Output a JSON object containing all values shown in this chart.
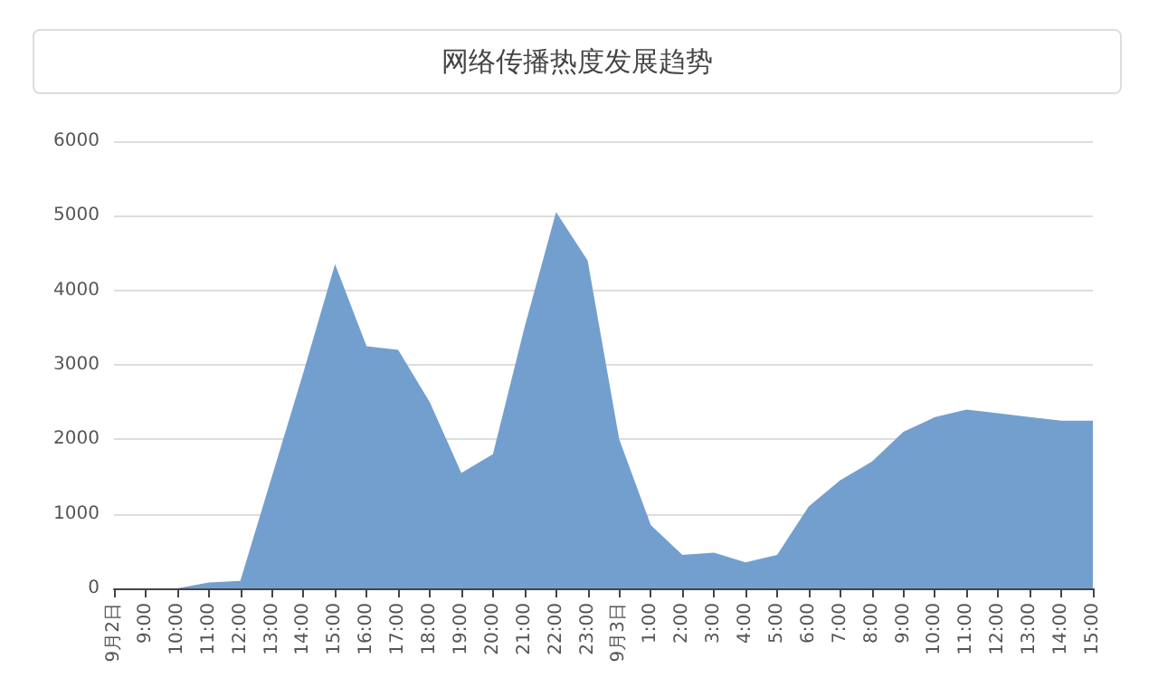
{
  "chart_data": {
    "type": "area",
    "title": "网络传播热度发展趋势",
    "categories": [
      "9月2日",
      "9:00",
      "10:00",
      "11:00",
      "12:00",
      "13:00",
      "14:00",
      "15:00",
      "16:00",
      "17:00",
      "18:00",
      "19:00",
      "20:00",
      "21:00",
      "22:00",
      "23:00",
      "9月3日",
      "1:00",
      "2:00",
      "3:00",
      "4:00",
      "5:00",
      "6:00",
      "7:00",
      "8:00",
      "9:00",
      "10:00",
      "11:00",
      "12:00",
      "13:00",
      "14:00",
      "15:00"
    ],
    "series": [
      {
        "color": "#739fcf",
        "values": [
          0,
          0,
          0,
          80,
          100,
          1500,
          2900,
          4350,
          3250,
          3200,
          2500,
          1550,
          1800,
          3500,
          5050,
          4400,
          2000,
          850,
          450,
          480,
          350,
          450,
          1100,
          1450,
          1700,
          2100,
          2300,
          2400,
          2350,
          2300,
          2250,
          2250
        ]
      }
    ],
    "ylim": [
      0,
      6000
    ],
    "yticks": [
      0,
      1000,
      2000,
      3000,
      4000,
      5000,
      6000
    ],
    "grid": "y",
    "marker": "none"
  }
}
